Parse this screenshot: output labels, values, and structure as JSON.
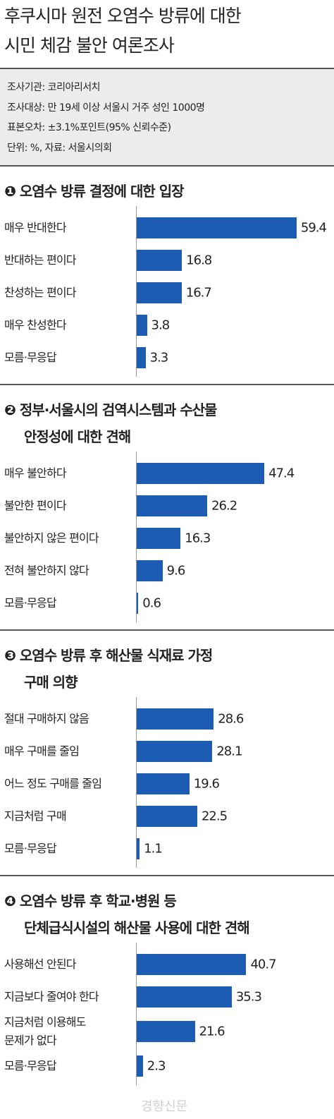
{
  "header": {
    "title": "후쿠시마 원전 오염수 방류에 대한\n시민 체감 불안 여론조사",
    "info": [
      "조사기관: 코리아리서치",
      "조사대상: 만 19세 이상 서울시 거주 성인 1000명",
      "표본오차: ±3.1%포인트(95% 신뢰수준)",
      "단위: %, 자료: 서울시의회"
    ]
  },
  "chart_data": [
    {
      "type": "bar",
      "title": "❶ 오염수 방류 결정에 대한 입장",
      "color": "#1c5db3",
      "categories": [
        "매우 반대한다",
        "반대하는 편이다",
        "찬성하는 편이다",
        "매우 찬성한다",
        "모름·무응답"
      ],
      "values": [
        59.4,
        16.8,
        16.7,
        3.8,
        3.3
      ]
    },
    {
      "type": "bar",
      "title": "❷ 정부·서울시의 검역시스템과 수산물\n안정성에 대한 견해",
      "color": "#1c5db3",
      "categories": [
        "매우 불안하다",
        "불안한 편이다",
        "불안하지 않은 편이다",
        "전혀 불안하지 않다",
        "모름·무응답"
      ],
      "values": [
        47.4,
        26.2,
        16.3,
        9.6,
        0.6
      ]
    },
    {
      "type": "bar",
      "title": "❸ 오염수 방류 후 해산물 식재료 가정\n구매 의향",
      "color": "#1c5db3",
      "categories": [
        "절대 구매하지 않음",
        "매우 구매를 줄임",
        "어느 정도 구매를 줄임",
        "지금처럼 구매",
        "모름·무응답"
      ],
      "values": [
        28.6,
        28.1,
        19.6,
        22.5,
        1.1
      ]
    },
    {
      "type": "bar",
      "title": "❹ 오염수 방류 후 학교·병원 등\n단체급식시설의 해산물 사용에 대한 견해",
      "color": "#1c5db3",
      "categories": [
        "사용해선 안된다",
        "지금보다 줄여야 한다",
        "지금처럼 이용해도\n문제가 없다",
        "모름·무응답"
      ],
      "values": [
        40.7,
        35.3,
        21.6,
        2.3
      ]
    }
  ],
  "watermark": "경향신문"
}
